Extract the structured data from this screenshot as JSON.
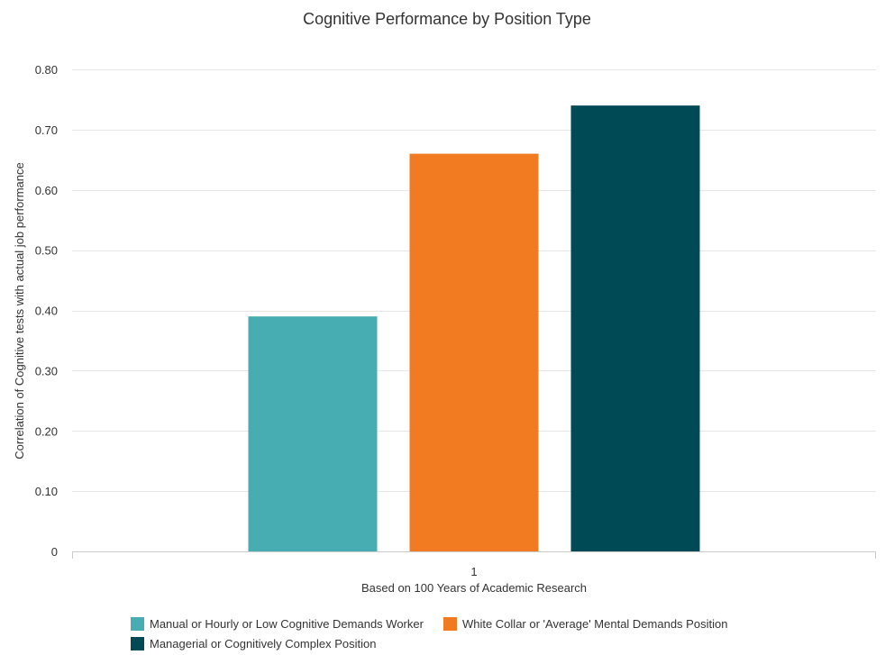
{
  "chart_data": {
    "type": "bar",
    "title": "Cognitive Performance by Position Type",
    "xlabel": "Based on 100 Years of Academic Research",
    "ylabel": "Correlation of Cognitive tests with actual job performance",
    "categories": [
      "1"
    ],
    "ylim": [
      0,
      0.8
    ],
    "yticks": [
      "0",
      "0.10",
      "0.20",
      "0.30",
      "0.40",
      "0.50",
      "0.60",
      "0.70",
      "0.80"
    ],
    "grid": true,
    "legend_position": "bottom",
    "series": [
      {
        "name": "Manual or Hourly or Low Cognitive Demands Worker",
        "values": [
          0.39
        ],
        "color": "#48adb2"
      },
      {
        "name": "White Collar or 'Average' Mental Demands Position",
        "values": [
          0.66
        ],
        "color": "#f27b22"
      },
      {
        "name": "Managerial or Cognitively Complex Position",
        "values": [
          0.74
        ],
        "color": "#004a55"
      }
    ]
  }
}
